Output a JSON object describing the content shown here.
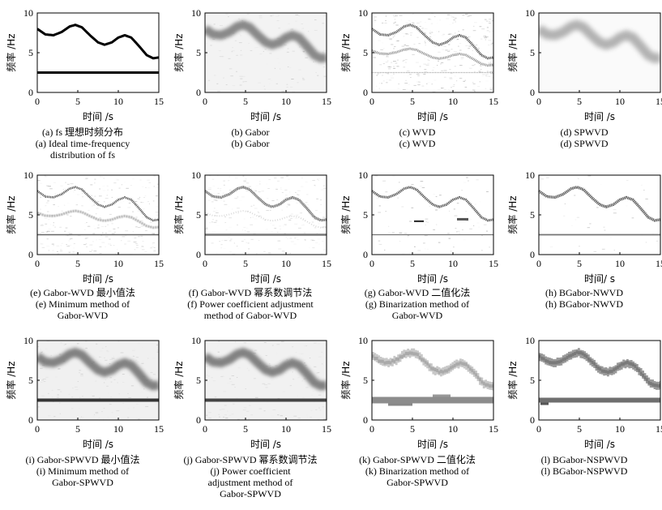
{
  "figure": {
    "panels": [
      {
        "id": "a",
        "render": "ideal",
        "ylabel": "频率 /Hz",
        "xlabel": "时间 /s",
        "caption_zh": "(a) fs 理想时频分布",
        "caption_en": [
          "(a) Ideal time-frequency",
          "distribution of fs"
        ]
      },
      {
        "id": "b",
        "render": "gabor",
        "ylabel": "频率 /Hz",
        "xlabel": "时间 /s",
        "caption_zh": "(b) Gabor",
        "caption_en": [
          "(b) Gabor"
        ]
      },
      {
        "id": "c",
        "render": "wvd",
        "ylabel": "频率 /Hz",
        "xlabel": "时间 /s",
        "caption_zh": "(c) WVD",
        "caption_en": [
          "(c) WVD"
        ]
      },
      {
        "id": "d",
        "render": "spwvd",
        "ylabel": "频率 /Hz",
        "xlabel": "时间 /s",
        "caption_zh": "(d) SPWVD",
        "caption_en": [
          "(d) SPWVD"
        ]
      },
      {
        "id": "e",
        "render": "gwvd_min",
        "ylabel": "频率 /Hz",
        "xlabel": "时间 /s",
        "caption_zh": "(e) Gabor-WVD 最小值法",
        "caption_en": [
          "(e) Minimum method of",
          "Gabor-WVD"
        ]
      },
      {
        "id": "f",
        "render": "gwvd_pow",
        "ylabel": "频率 /Hz",
        "xlabel": "时间 /s",
        "caption_zh": "(f) Gabor-WVD 幂系数调节法",
        "caption_en": [
          "(f) Power coefficient adjustment",
          "method of Gabor-WVD"
        ]
      },
      {
        "id": "g",
        "render": "gwvd_bin",
        "ylabel": "频率 /Hz",
        "xlabel": "时间 /s",
        "caption_zh": "(g) Gabor-WVD 二值化法",
        "caption_en": [
          "(g) Binarization method of",
          "Gabor-WVD"
        ]
      },
      {
        "id": "h",
        "render": "bg_nwvd",
        "ylabel": "频率 /Hz",
        "xlabel": "时间/ s",
        "caption_zh": "(h) BGabor-NWVD",
        "caption_en": [
          "(h) BGabor-NWVD"
        ]
      },
      {
        "id": "i",
        "render": "gspwvd_min",
        "ylabel": "频率 /Hz",
        "xlabel": "时间 /s",
        "caption_zh": "(i) Gabor-SPWVD 最小值法",
        "caption_en": [
          "(i) Minimum method of",
          "Gabor-SPWVD"
        ]
      },
      {
        "id": "j",
        "render": "gspwvd_pow",
        "ylabel": "频率 /Hz",
        "xlabel": "时间 /s",
        "caption_zh": "(j) Gabor-SPWVD 幂系数调节法",
        "caption_en": [
          "(j) Power coefficient",
          "adjustment method of",
          "Gabor-SPWVD"
        ]
      },
      {
        "id": "k",
        "render": "gspwvd_bin",
        "ylabel": "频率 /Hz",
        "xlabel": "时间 /s",
        "caption_zh": "(k) Gabor-SPWVD 二值化法",
        "caption_en": [
          "(k) Binarization method of",
          "Gabor-SPWVD"
        ]
      },
      {
        "id": "l",
        "render": "bg_nspwvd",
        "ylabel": "频率 /Hz",
        "xlabel": "时间 /s",
        "caption_zh": "(l) BGabor-NSPWVD",
        "caption_en": [
          "(l) BGabor-NSPWVD"
        ]
      }
    ]
  },
  "chart_data": {
    "type": "heatmap",
    "layout": "3x4 grid of time-frequency distributions",
    "xlim": [
      0,
      15
    ],
    "ylim": [
      0,
      10
    ],
    "xticks": [
      0,
      5,
      10,
      15
    ],
    "yticks": [
      0,
      5,
      10
    ],
    "grid": false,
    "colormap": "grayscale (darker = higher energy)",
    "components": [
      {
        "kind": "sinusoidal FM",
        "t": [
          0,
          1,
          2,
          3,
          4,
          4.7,
          5.5,
          6.5,
          7.5,
          8.3,
          9.2,
          10,
          10.8,
          11.6,
          12.5,
          13.5,
          14.3,
          15
        ],
        "f": [
          8.0,
          7.3,
          7.2,
          7.6,
          8.3,
          8.5,
          8.2,
          7.2,
          6.3,
          6.0,
          6.3,
          6.9,
          7.2,
          6.9,
          5.9,
          4.7,
          4.3,
          4.4
        ]
      },
      {
        "kind": "constant",
        "t": [
          0,
          15
        ],
        "f": [
          2.5,
          2.5
        ]
      }
    ]
  }
}
